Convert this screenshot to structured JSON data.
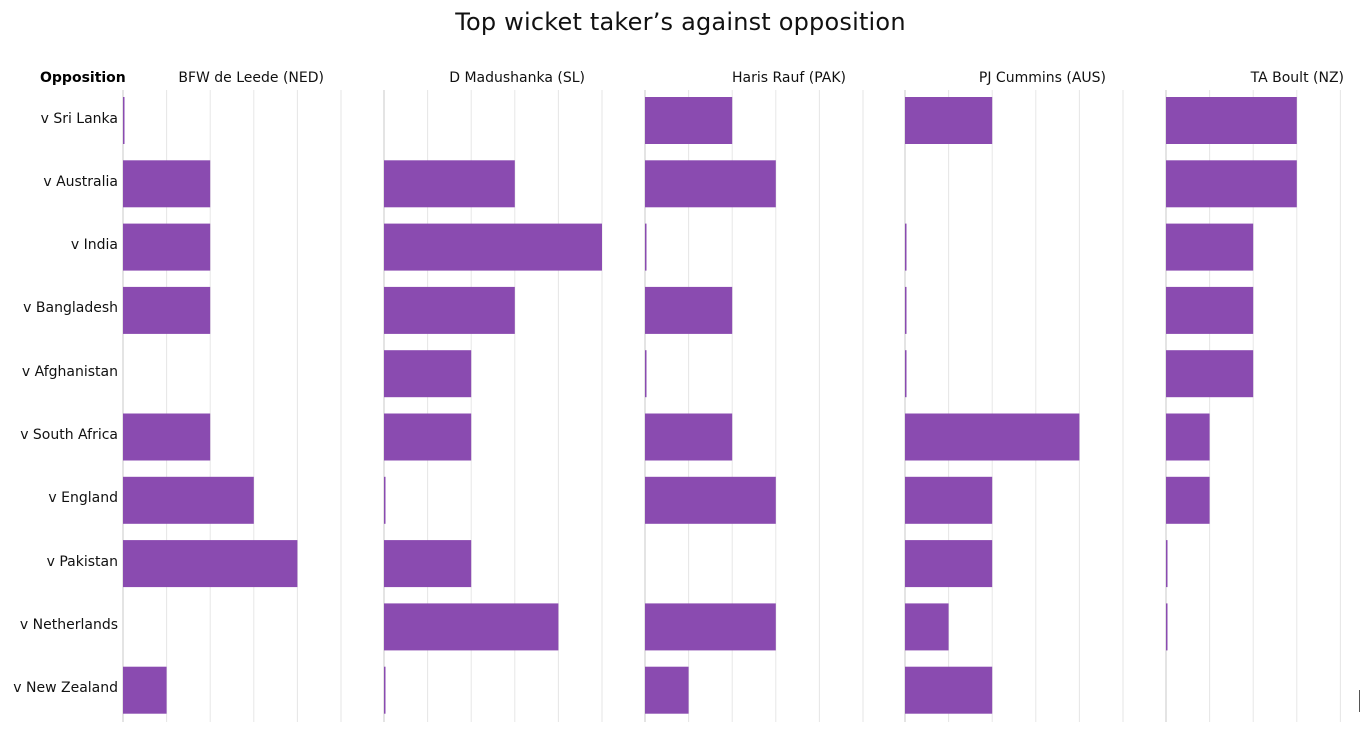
{
  "title": "Top wicket taker’s against opposition",
  "row_header": "Opposition",
  "colors": {
    "bar": "#8a4bb0",
    "grid": "#e6e6e6",
    "axis": "#c8c8c8"
  },
  "chart_data": {
    "type": "bar",
    "orientation": "horizontal",
    "title": "Top wicket taker’s against opposition",
    "row_header": "Opposition",
    "categories": [
      "v Sri Lanka",
      "v Australia",
      "v India",
      "v Bangladesh",
      "v Afghanistan",
      "v South Africa",
      "v England",
      "v Pakistan",
      "v Netherlands",
      "v New Zealand"
    ],
    "xlim": [
      0,
      5
    ],
    "grid": true,
    "series": [
      {
        "name": "BFW de Leede (NED)",
        "values": [
          0,
          2,
          2,
          2,
          null,
          2,
          3,
          4,
          null,
          1
        ]
      },
      {
        "name": "D Madushanka (SL)",
        "values": [
          null,
          3,
          5,
          3,
          2,
          2,
          0,
          2,
          4,
          0
        ]
      },
      {
        "name": "Haris Rauf (PAK)",
        "values": [
          2,
          3,
          0,
          2,
          0,
          2,
          3,
          null,
          3,
          1
        ]
      },
      {
        "name": "PJ Cummins (AUS)",
        "values": [
          2,
          null,
          0,
          0,
          0,
          4,
          2,
          2,
          1,
          2
        ]
      },
      {
        "name": "TA Boult (NZ)",
        "values": [
          3,
          3,
          2,
          2,
          2,
          1,
          1,
          0,
          0,
          null
        ]
      }
    ]
  }
}
